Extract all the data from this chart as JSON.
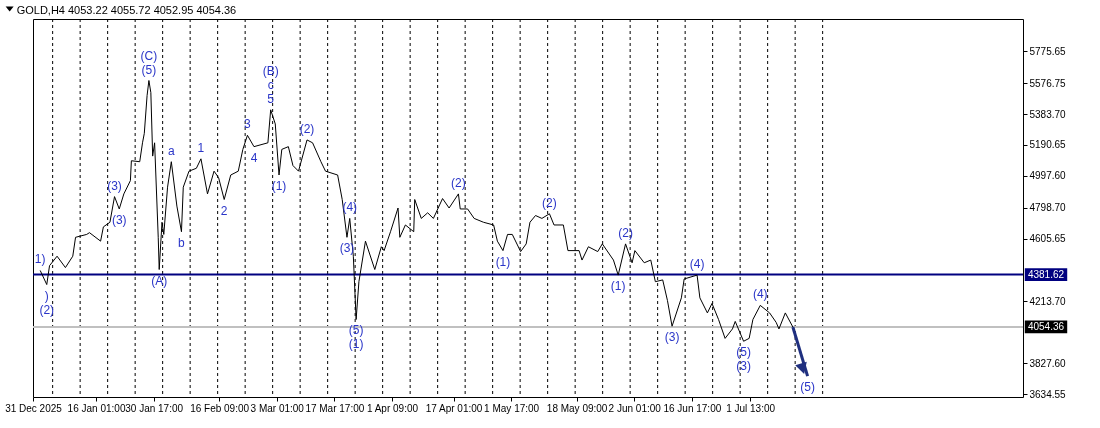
{
  "chart_data": {
    "type": "line",
    "title": "GOLD,H4  4053.22 4055.72 4052.95 4054.36",
    "color": "#000000",
    "x": [
      "2026-01-01T20:00",
      "2026-01-03T12:00",
      "2026-01-04T05:00",
      "2026-01-06T03:00",
      "2026-01-08T06:00",
      "2026-01-10T03:00",
      "2026-01-10T20:00",
      "2026-01-13T16:00",
      "2026-01-14T09:00",
      "2026-01-17T05:00",
      "2026-01-17T22:00",
      "2026-01-19T14:00",
      "2026-01-20T18:00",
      "2026-01-21T23:00",
      "2026-01-23T03:00",
      "2026-01-24T19:00",
      "2026-01-25T01:00",
      "2026-01-27T04:00",
      "2026-01-27T21:00",
      "2026-01-28T08:00",
      "2026-01-29T01:00",
      "2026-01-29T12:00",
      "2026-01-30T00:00",
      "2026-01-30T11:00",
      "2026-01-30T23:00",
      "2026-01-31T21:00",
      "2026-02-01T03:00",
      "2026-02-01T20:00",
      "2026-02-02T07:00",
      "2026-02-03T06:00",
      "2026-02-04T05:00",
      "2026-02-05T15:00",
      "2026-02-06T19:00",
      "2026-02-07T06:00",
      "2026-02-08T17:00",
      "2026-02-10T14:00",
      "2026-02-11T18:00",
      "2026-02-13T10:00",
      "2026-02-15T02:00",
      "2026-02-16T06:00",
      "2026-02-17T16:00",
      "2026-02-19T08:00",
      "2026-02-21T06:00",
      "2026-02-22T10:00",
      "2026-02-23T14:00",
      "2026-02-25T06:00",
      "2026-02-28T19:00",
      "2026-03-01T12:00",
      "2026-03-02T16:00",
      "2026-03-03T15:00",
      "2026-03-04T08:00",
      "2026-03-06T00:00",
      "2026-03-07T04:00",
      "2026-03-08T14:00",
      "2026-03-10T18:00",
      "2026-03-12T04:00",
      "2026-03-14T07:00",
      "2026-03-15T11:00",
      "2026-03-18T13:00",
      "2026-03-19T17:00",
      "2026-03-20T22:00",
      "2026-03-21T15:00",
      "2026-03-22T13:00",
      "2026-03-23T06:00",
      "2026-03-23T23:00",
      "2026-03-25T15:00",
      "2026-03-28T00:00",
      "2026-03-29T16:00",
      "2026-03-30T09:00",
      "2026-04-01T00:00",
      "2026-04-02T22:00",
      "2026-04-03T09:00",
      "2026-04-04T19:00",
      "2026-04-06T22:00",
      "2026-04-07T04:00",
      "2026-04-08T20:00",
      "2026-04-10T11:00",
      "2026-04-11T22:00",
      "2026-04-14T06:00",
      "2026-04-15T22:00",
      "2026-04-18T07:00",
      "2026-04-18T18:00",
      "2026-04-20T15:00",
      "2026-04-22T07:00",
      "2026-04-24T16:00",
      "2026-04-27T06:00",
      "2026-04-28T05:00",
      "2026-04-29T15:00",
      "2026-04-30T19:00",
      "2026-05-02T00:00",
      "2026-05-04T03:00",
      "2026-05-05T13:00",
      "2026-05-06T12:00",
      "2026-05-07T22:00",
      "2026-05-09T13:00",
      "2026-05-11T11:00",
      "2026-05-12T15:00",
      "2026-05-15T00:00",
      "2026-05-16T04:00",
      "2026-05-19T00:00",
      "2026-05-19T18:00",
      "2026-05-21T09:00",
      "2026-05-23T18:00",
      "2026-05-24T22:00",
      "2026-05-27T18:00",
      "2026-05-28T23:00",
      "2026-05-30T20:00",
      "2026-06-01T12:00",
      "2026-06-02T05:00",
      "2026-06-04T14:00",
      "2026-06-06T06:00",
      "2026-06-07T10:00",
      "2026-06-09T07:00",
      "2026-06-10T12:00",
      "2026-06-11T16:00",
      "2026-06-14T01:00",
      "2026-06-14T18:00",
      "2026-06-18T01:00",
      "2026-06-18T18:00",
      "2026-06-20T16:00",
      "2026-06-21T20:00",
      "2026-06-23T12:00",
      "2026-06-25T04:00",
      "2026-06-27T01:00",
      "2026-06-27T18:00",
      "2026-06-29T21:00",
      "2026-07-01T07:00",
      "2026-07-02T06:00",
      "2026-07-04T03:00",
      "2026-07-06T12:00",
      "2026-07-08T04:00",
      "2026-07-08T21:00",
      "2026-07-10T12:00",
      "2026-07-12T10:00"
    ],
    "values": [
      4407,
      4319,
      4437,
      4496,
      4425,
      4496,
      4614,
      4632,
      4643,
      4590,
      4679,
      4708,
      4868,
      4791,
      4885,
      4968,
      5092,
      5086,
      5204,
      5263,
      5499,
      5593,
      5517,
      5121,
      5204,
      4614,
      4413,
      4708,
      4632,
      4927,
      5086,
      4809,
      4649,
      4927,
      5027,
      5045,
      5104,
      4885,
      5027,
      4986,
      4850,
      5003,
      5027,
      5163,
      5251,
      5180,
      5204,
      5410,
      5322,
      5003,
      5163,
      5180,
      5062,
      5027,
      5222,
      5204,
      5086,
      5027,
      5003,
      4850,
      4614,
      4732,
      4496,
      4101,
      4337,
      4590,
      4413,
      4555,
      4531,
      4649,
      4797,
      4614,
      4691,
      4649,
      4850,
      4732,
      4767,
      4732,
      4856,
      4797,
      4885,
      4791,
      4791,
      4732,
      4708,
      4691,
      4590,
      4531,
      4632,
      4632,
      4525,
      4573,
      4708,
      4750,
      4732,
      4761,
      4691,
      4691,
      4531,
      4531,
      4472,
      4555,
      4525,
      4573,
      4472,
      4378,
      4573,
      4455,
      4531,
      4455,
      4472,
      4337,
      4348,
      4219,
      4059,
      4236,
      4354,
      4378,
      4236,
      4142,
      4201,
      4101,
      3983,
      4042,
      4089,
      3965,
      3983,
      4101,
      4189,
      4142,
      4083,
      4042,
      4142,
      4054
    ],
    "series": [
      {
        "type": "line",
        "color": "#1f2f7f",
        "x": [
          "2026-07-12T10:00",
          "2026-07-16T04:00"
        ],
        "values": [
          4054,
          3747
        ]
      }
    ],
    "xlim": [
      "2025-12-31",
      "2026-09-09"
    ],
    "xticks": [
      {
        "value": "2025-12-31",
        "label": "31 Dec 2025"
      },
      {
        "value": "2026-01-16T01:00",
        "label": "16 Jan 01:00"
      },
      {
        "value": "2026-01-30T17:00",
        "label": "30 Jan 17:00"
      },
      {
        "value": "2026-02-16T09:00",
        "label": "16 Feb 09:00"
      },
      {
        "value": "2026-03-03T01:00",
        "label": "3 Mar 01:00"
      },
      {
        "value": "2026-03-17T17:00",
        "label": "17 Mar 17:00"
      },
      {
        "value": "2026-04-01T09:00",
        "label": "1 Apr 09:00"
      },
      {
        "value": "2026-04-17T01:00",
        "label": "17 Apr 01:00"
      },
      {
        "value": "2026-05-01T17:00",
        "label": "1 May 17:00"
      },
      {
        "value": "2026-05-18T09:00",
        "label": "18 May 09:00"
      },
      {
        "value": "2026-06-02T01:00",
        "label": "2 Jun 01:00"
      },
      {
        "value": "2026-06-16T17:00",
        "label": "16 Jun 17:00"
      },
      {
        "value": "2026-07-01T13:00",
        "label": "1 Jul 13:00"
      }
    ],
    "ylim": [
      3617,
      5977
    ],
    "yticks": [
      {
        "value": 3634.55,
        "label": "3634.55"
      },
      {
        "value": 3827.6,
        "label": "3827.60"
      },
      {
        "value": 4213.7,
        "label": "4213.70"
      },
      {
        "value": 4605.65,
        "label": "4605.65"
      },
      {
        "value": 4798.7,
        "label": "4798.70"
      },
      {
        "value": 4997.6,
        "label": "4997.60"
      },
      {
        "value": 5190.65,
        "label": "5190.65"
      },
      {
        "value": 5383.7,
        "label": "5383.70"
      },
      {
        "value": 5576.75,
        "label": "5576.75"
      },
      {
        "value": 5775.65,
        "label": "5775.65"
      }
    ],
    "ref_lines": [
      {
        "axis": "y",
        "value": 4381.62,
        "label": "4381.62",
        "color": "#000080",
        "line_style": "solid"
      },
      {
        "axis": "y",
        "value": 4054.36,
        "label": "4054.36",
        "color": "#c0c0c0",
        "line_style": "solid"
      },
      {
        "axis": "x",
        "value": "2026-01-05",
        "color": "#000000",
        "line_style": "dashed"
      },
      {
        "axis": "x",
        "value": "2026-01-12",
        "color": "#000000",
        "line_style": "dashed"
      },
      {
        "axis": "x",
        "value": "2026-01-19",
        "color": "#000000",
        "line_style": "dashed"
      },
      {
        "axis": "x",
        "value": "2026-01-26",
        "color": "#000000",
        "line_style": "dashed"
      },
      {
        "axis": "x",
        "value": "2026-02-02",
        "color": "#000000",
        "line_style": "dashed"
      },
      {
        "axis": "x",
        "value": "2026-02-09",
        "color": "#000000",
        "line_style": "dashed"
      },
      {
        "axis": "x",
        "value": "2026-02-16",
        "color": "#000000",
        "line_style": "dashed"
      },
      {
        "axis": "x",
        "value": "2026-02-23",
        "color": "#000000",
        "line_style": "dashed"
      },
      {
        "axis": "x",
        "value": "2026-03-02",
        "color": "#000000",
        "line_style": "dashed"
      },
      {
        "axis": "x",
        "value": "2026-03-09",
        "color": "#000000",
        "line_style": "dashed"
      },
      {
        "axis": "x",
        "value": "2026-03-16",
        "color": "#000000",
        "line_style": "dashed"
      },
      {
        "axis": "x",
        "value": "2026-03-23",
        "color": "#000000",
        "line_style": "dashed"
      },
      {
        "axis": "x",
        "value": "2026-03-30",
        "color": "#000000",
        "line_style": "dashed"
      },
      {
        "axis": "x",
        "value": "2026-04-06",
        "color": "#000000",
        "line_style": "dashed"
      },
      {
        "axis": "x",
        "value": "2026-04-13",
        "color": "#000000",
        "line_style": "dashed"
      },
      {
        "axis": "x",
        "value": "2026-04-20",
        "color": "#000000",
        "line_style": "dashed"
      },
      {
        "axis": "x",
        "value": "2026-04-27",
        "color": "#000000",
        "line_style": "dashed"
      },
      {
        "axis": "x",
        "value": "2026-05-04",
        "color": "#000000",
        "line_style": "dashed"
      },
      {
        "axis": "x",
        "value": "2026-05-11",
        "color": "#000000",
        "line_style": "dashed"
      },
      {
        "axis": "x",
        "value": "2026-05-18",
        "color": "#000000",
        "line_style": "dashed"
      },
      {
        "axis": "x",
        "value": "2026-05-25",
        "color": "#000000",
        "line_style": "dashed"
      },
      {
        "axis": "x",
        "value": "2026-06-01",
        "color": "#000000",
        "line_style": "dashed"
      },
      {
        "axis": "x",
        "value": "2026-06-08",
        "color": "#000000",
        "line_style": "dashed"
      },
      {
        "axis": "x",
        "value": "2026-06-15",
        "color": "#000000",
        "line_style": "dashed"
      },
      {
        "axis": "x",
        "value": "2026-06-22",
        "color": "#000000",
        "line_style": "dashed"
      },
      {
        "axis": "x",
        "value": "2026-06-29",
        "color": "#000000",
        "line_style": "dashed"
      },
      {
        "axis": "x",
        "value": "2026-07-06",
        "color": "#000000",
        "line_style": "dashed"
      },
      {
        "axis": "x",
        "value": "2026-07-13",
        "color": "#000000",
        "line_style": "dashed"
      },
      {
        "axis": "x",
        "value": "2026-07-20",
        "color": "#000000",
        "line_style": "dashed"
      }
    ],
    "annotations": [
      {
        "text": "1)",
        "x": "2026-01-01T20:00",
        "y": 4407
      },
      {
        "text": ")",
        "x": "2026-01-03T12:00",
        "y": 4319
      },
      {
        "text": "(2)",
        "x": "2026-01-03T12:00",
        "y": 4319
      },
      {
        "text": "(3)",
        "x": "2026-01-20T18:00",
        "y": 4868
      },
      {
        "text": "(3)",
        "x": "2026-01-21T23:00",
        "y": 4791
      },
      {
        "text": "(5)",
        "x": "2026-01-29T12:00",
        "y": 5593
      },
      {
        "text": "(C)",
        "x": "2026-01-29T12:00",
        "y": 5593
      },
      {
        "text": "a",
        "x": "2026-02-04T05:00",
        "y": 5086
      },
      {
        "text": "b",
        "x": "2026-02-06T19:00",
        "y": 4649
      },
      {
        "text": "1",
        "x": "2026-02-11T18:00",
        "y": 5104
      },
      {
        "text": "2",
        "x": "2026-02-17T16:00",
        "y": 4850
      },
      {
        "text": "3",
        "x": "2026-02-23T14:00",
        "y": 5251
      },
      {
        "text": "4",
        "x": "2026-02-25T06:00",
        "y": 5180
      },
      {
        "text": "(A)",
        "x": "2026-02-01T03:00",
        "y": 4413
      },
      {
        "text": "5",
        "x": "2026-03-01T12:00",
        "y": 5410
      },
      {
        "text": "c",
        "x": "2026-03-01T12:00",
        "y": 5410
      },
      {
        "text": "(B)",
        "x": "2026-03-01T12:00",
        "y": 5410
      },
      {
        "text": "(1)",
        "x": "2026-03-03T15:00",
        "y": 5003
      },
      {
        "text": "(2)",
        "x": "2026-03-10T18:00",
        "y": 5222
      },
      {
        "text": "(4)",
        "x": "2026-03-21T15:00",
        "y": 4732
      },
      {
        "text": "(3)",
        "x": "2026-03-20T22:00",
        "y": 4614
      },
      {
        "text": "(5)",
        "x": "2026-03-23T06:00",
        "y": 4101
      },
      {
        "text": "(1)",
        "x": "2026-03-23T06:00",
        "y": 4101
      },
      {
        "text": "(2)",
        "x": "2026-04-18T07:00",
        "y": 4885
      },
      {
        "text": "(1)",
        "x": "2026-04-29T15:00",
        "y": 4531
      },
      {
        "text": "(2)",
        "x": "2026-05-11T11:00",
        "y": 4761
      },
      {
        "text": "(2)",
        "x": "2026-05-30T20:00",
        "y": 4573
      },
      {
        "text": "(1)",
        "x": "2026-05-28T23:00",
        "y": 4378
      },
      {
        "text": "(3)",
        "x": "2026-06-11T16:00",
        "y": 4059
      },
      {
        "text": "(4)",
        "x": "2026-06-18T01:00",
        "y": 4378
      },
      {
        "text": "(4)",
        "x": "2026-07-04T03:00",
        "y": 4189
      },
      {
        "text": "(5)",
        "x": "2026-06-29T21:00",
        "y": 3965
      },
      {
        "text": "(3)",
        "x": "2026-06-29T21:00",
        "y": 3965
      },
      {
        "text": "(5)",
        "x": "2026-07-16T04:00",
        "y": 3747
      }
    ]
  }
}
